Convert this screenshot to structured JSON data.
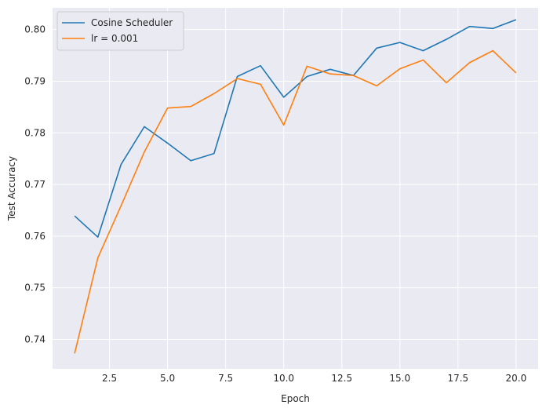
{
  "chart_data": {
    "type": "line",
    "title": "",
    "xlabel": "Epoch",
    "ylabel": "Test Accuracy",
    "xlim": [
      0.05,
      20.95
    ],
    "ylim": [
      0.7343,
      0.8042
    ],
    "xticks": [
      2.5,
      5.0,
      7.5,
      10.0,
      12.5,
      15.0,
      17.5,
      20.0
    ],
    "xtick_labels": [
      "2.5",
      "5.0",
      "7.5",
      "10.0",
      "12.5",
      "15.0",
      "17.5",
      "20.0"
    ],
    "yticks": [
      0.74,
      0.75,
      0.76,
      0.77,
      0.78,
      0.79,
      0.8
    ],
    "ytick_labels": [
      "0.74",
      "0.75",
      "0.76",
      "0.77",
      "0.78",
      "0.79",
      "0.80"
    ],
    "grid": true,
    "legend_position": "top-left",
    "x": [
      1,
      2,
      3,
      4,
      5,
      6,
      7,
      8,
      9,
      10,
      11,
      12,
      13,
      14,
      15,
      16,
      17,
      18,
      19,
      20
    ],
    "series": [
      {
        "name": "Cosine Scheduler",
        "color": "#1f77b4",
        "values": [
          0.7639,
          0.7598,
          0.7739,
          0.7812,
          0.778,
          0.7746,
          0.776,
          0.7909,
          0.793,
          0.7869,
          0.7909,
          0.7923,
          0.7911,
          0.7964,
          0.7975,
          0.7959,
          0.7981,
          0.8006,
          0.8002,
          0.8019
        ]
      },
      {
        "name": "lr = 0.001",
        "color": "#ff7f0e",
        "values": [
          0.7373,
          0.7558,
          0.7659,
          0.7763,
          0.7848,
          0.7851,
          0.7876,
          0.7905,
          0.7894,
          0.7815,
          0.7929,
          0.7914,
          0.7911,
          0.7891,
          0.7924,
          0.7941,
          0.7897,
          0.7936,
          0.7959,
          0.7916
        ]
      }
    ]
  }
}
